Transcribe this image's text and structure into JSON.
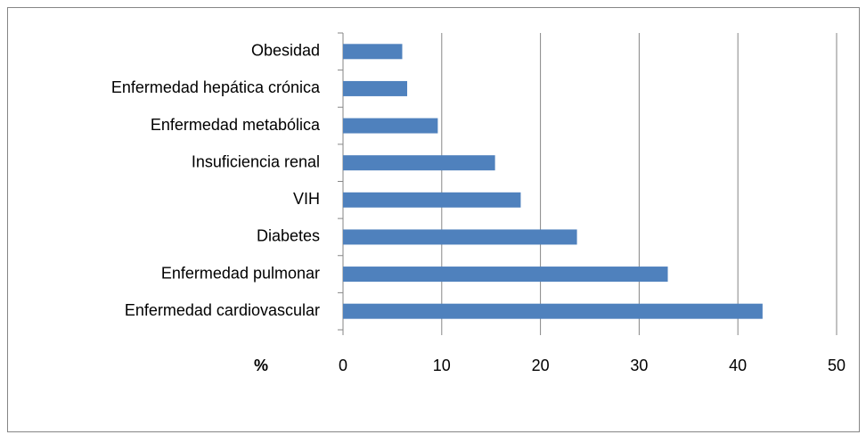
{
  "chart_data": {
    "type": "bar",
    "orientation": "horizontal",
    "x_label": "%",
    "categories": [
      "Obesidad",
      "Enfermedad hepática crónica",
      "Enfermedad metabólica",
      "Insuficiencia renal",
      "VIH",
      "Diabetes",
      "Enfermedad pulmonar",
      "Enfermedad cardiovascular"
    ],
    "values": [
      6.0,
      6.5,
      9.6,
      15.4,
      18.0,
      23.7,
      32.9,
      42.5
    ],
    "color": "#4f81bd",
    "xlim": [
      0,
      50
    ],
    "xticks": [
      0,
      10,
      20,
      30,
      40,
      50
    ],
    "grid": true
  }
}
